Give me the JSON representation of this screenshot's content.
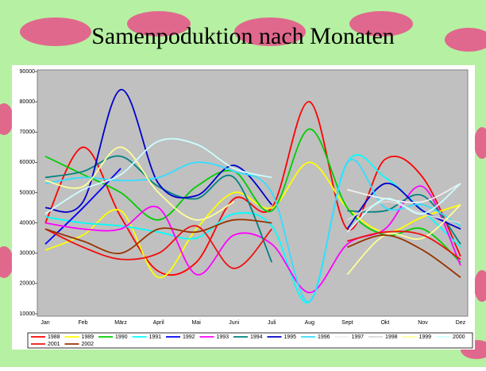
{
  "chart_data": {
    "type": "line",
    "title": "Samenpoduktion nach Monaten",
    "categories": [
      "Jan",
      "Feb",
      "März",
      "April",
      "Mai",
      "Juni",
      "Juli",
      "Aug",
      "Sept",
      "Okt",
      "Nov",
      "Dez"
    ],
    "ylim": [
      10000,
      90000
    ],
    "yticks": [
      10000,
      20000,
      30000,
      40000,
      50000,
      60000,
      70000,
      80000,
      90000
    ],
    "smooth": true,
    "series": [
      {
        "name": "1988",
        "color": "#ff0000",
        "values": [
          40000,
          65000,
          42000,
          24000,
          27000,
          48000,
          45000,
          80000,
          38000,
          61000,
          55000,
          29000
        ]
      },
      {
        "name": "1989",
        "color": "#ffff00",
        "values": [
          31000,
          36000,
          44000,
          22000,
          38000,
          50000,
          45000,
          60000,
          45000,
          37000,
          42000,
          46000
        ]
      },
      {
        "name": "1990",
        "color": "#00cc00",
        "values": [
          62000,
          56000,
          50000,
          41000,
          52000,
          57000,
          44000,
          71000,
          45000,
          36000,
          38000,
          27000
        ]
      },
      {
        "name": "1991",
        "color": "#00ffff",
        "values": [
          42000,
          40000,
          39000,
          37000,
          35000,
          43000,
          39000,
          14000,
          60000,
          55000,
          44000,
          32000
        ]
      },
      {
        "name": "1992",
        "color": "#0000ff",
        "values": [
          33000,
          45000,
          58000,
          null,
          null,
          null,
          null,
          null,
          null,
          null,
          null,
          null
        ]
      },
      {
        "name": "1993",
        "color": "#ff00ff",
        "values": [
          40000,
          38000,
          38000,
          45000,
          23000,
          36000,
          33000,
          17000,
          33000,
          38000,
          52000,
          26000
        ]
      },
      {
        "name": "1994",
        "color": "#008080",
        "values": [
          55000,
          57000,
          62000,
          52000,
          48000,
          55000,
          27000,
          null,
          44000,
          44000,
          49000,
          33000
        ]
      },
      {
        "name": "1995",
        "color": "#0000cc",
        "values": [
          45000,
          47000,
          84000,
          53000,
          49000,
          59000,
          46000,
          null,
          38000,
          53000,
          44000,
          38000
        ]
      },
      {
        "name": "1996",
        "color": "#33ddff",
        "values": [
          53000,
          55000,
          54000,
          55000,
          60000,
          57000,
          50000,
          14000,
          60000,
          45000,
          46000,
          39000
        ]
      },
      {
        "name": "1997",
        "color": "#f0f0f0",
        "values": [
          null,
          null,
          null,
          null,
          null,
          null,
          null,
          null,
          51000,
          48000,
          47000,
          53000
        ]
      },
      {
        "name": "1998",
        "color": "#d8d8d8",
        "values": [
          null,
          null,
          null,
          null,
          null,
          null,
          null,
          null,
          41000,
          47000,
          43000,
          40000
        ]
      },
      {
        "name": "1999",
        "color": "#ffff99",
        "values": [
          54000,
          52000,
          65000,
          50000,
          41000,
          47000,
          null,
          null,
          23000,
          36000,
          35000,
          46000
        ]
      },
      {
        "name": "2000",
        "color": "#ccffff",
        "values": [
          43000,
          51000,
          56000,
          67000,
          66000,
          58000,
          55000,
          null,
          37000,
          48000,
          43000,
          53000
        ]
      },
      {
        "name": "2001",
        "color": "#ee1111",
        "values": [
          38000,
          32000,
          28000,
          30000,
          39000,
          25000,
          38000,
          null,
          34000,
          37000,
          36000,
          28000
        ]
      },
      {
        "name": "2002",
        "color": "#993300",
        "values": [
          38000,
          34000,
          30000,
          38000,
          37000,
          41000,
          40000,
          null,
          32000,
          36000,
          31000,
          22000
        ]
      }
    ]
  }
}
